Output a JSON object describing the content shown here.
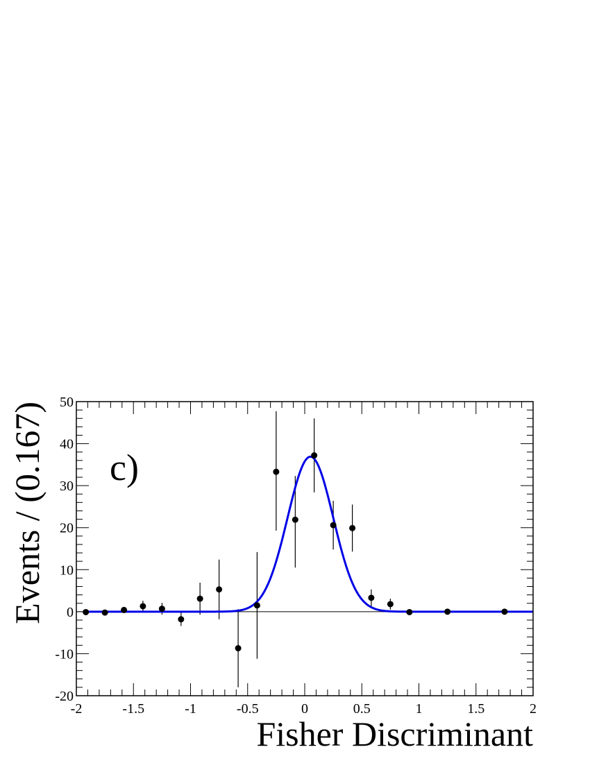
{
  "chart_data": {
    "type": "scatter",
    "title": "",
    "xlabel": "Fisher Discriminant",
    "ylabel": "Events / (0.167)",
    "annotation": "c)",
    "xlim": [
      -2,
      2
    ],
    "ylim": [
      -20,
      50
    ],
    "xticks": [
      -2,
      -1.5,
      -1,
      -0.5,
      0,
      0.5,
      1,
      1.5,
      2
    ],
    "xtick_labels": [
      "-2",
      "-1.5",
      "-1",
      "-0.5",
      "0",
      "0.5",
      "1",
      "1.5",
      "2"
    ],
    "yticks": [
      -20,
      -10,
      0,
      10,
      20,
      30,
      40,
      50
    ],
    "ytick_labels": [
      "-20",
      "-10",
      "0",
      "10",
      "20",
      "30",
      "40",
      "50"
    ],
    "grid": false,
    "colors": {
      "data": "#000000",
      "fit": "#0000e6"
    },
    "series": [
      {
        "kind": "points_with_errors",
        "x": [
          -1.917,
          -1.75,
          -1.583,
          -1.417,
          -1.25,
          -1.083,
          -0.917,
          -0.75,
          -0.583,
          -0.417,
          -0.25,
          -0.083,
          0.083,
          0.25,
          0.417,
          0.583,
          0.75,
          0.917,
          1.25,
          1.75
        ],
        "y": [
          -0.1,
          -0.2,
          0.4,
          1.3,
          0.7,
          -1.8,
          3.1,
          5.3,
          -8.7,
          1.5,
          33.3,
          21.9,
          37.2,
          20.6,
          19.9,
          3.3,
          1.8,
          -0.1,
          0.0,
          0.0
        ],
        "yerr_low": [
          0.3,
          0.3,
          0.4,
          1.3,
          1.4,
          1.6,
          3.8,
          7.1,
          9.3,
          12.7,
          14.0,
          11.4,
          8.8,
          5.8,
          5.6,
          2.0,
          1.3,
          0.3,
          0.1,
          0.1
        ],
        "yerr_high": [
          0.3,
          0.3,
          0.4,
          1.3,
          1.4,
          1.6,
          3.8,
          7.1,
          9.3,
          12.7,
          14.4,
          10.4,
          8.8,
          5.8,
          5.6,
          2.0,
          1.3,
          0.3,
          0.1,
          0.1
        ]
      },
      {
        "kind": "fit_curve",
        "function": "gaussian",
        "amplitude": 36.9,
        "mean": 0.05,
        "sigma": 0.2
      }
    ]
  }
}
